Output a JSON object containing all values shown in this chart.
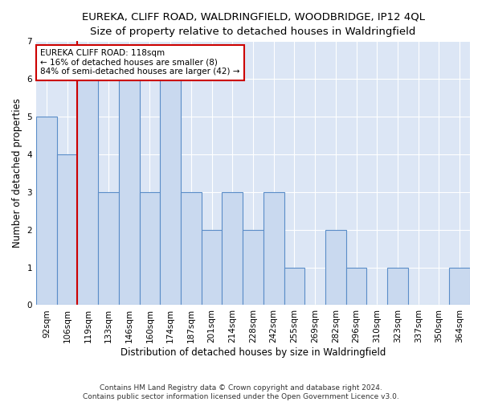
{
  "title": "EUREKA, CLIFF ROAD, WALDRINGFIELD, WOODBRIDGE, IP12 4QL",
  "subtitle": "Size of property relative to detached houses in Waldringfield",
  "xlabel": "Distribution of detached houses by size in Waldringfield",
  "ylabel": "Number of detached properties",
  "categories": [
    "92sqm",
    "106sqm",
    "119sqm",
    "133sqm",
    "146sqm",
    "160sqm",
    "174sqm",
    "187sqm",
    "201sqm",
    "214sqm",
    "228sqm",
    "242sqm",
    "255sqm",
    "269sqm",
    "282sqm",
    "296sqm",
    "310sqm",
    "323sqm",
    "337sqm",
    "350sqm",
    "364sqm"
  ],
  "values": [
    5,
    4,
    6,
    3,
    6,
    3,
    6,
    3,
    2,
    3,
    2,
    3,
    1,
    0,
    2,
    1,
    0,
    1,
    0,
    0,
    1
  ],
  "bar_color": "#c9d9ef",
  "bar_edge_color": "#5b8dc8",
  "plot_bg_color": "#dce6f5",
  "red_line_index": 2,
  "annotation_line1": "EUREKA CLIFF ROAD: 118sqm",
  "annotation_line2": "← 16% of detached houses are smaller (8)",
  "annotation_line3": "84% of semi-detached houses are larger (42) →",
  "annotation_box_color": "#ffffff",
  "annotation_box_edge": "#cc0000",
  "red_line_color": "#cc0000",
  "ylim": [
    0,
    7
  ],
  "yticks": [
    0,
    1,
    2,
    3,
    4,
    5,
    6,
    7
  ],
  "footnote1": "Contains HM Land Registry data © Crown copyright and database right 2024.",
  "footnote2": "Contains public sector information licensed under the Open Government Licence v3.0.",
  "title_fontsize": 9.5,
  "xlabel_fontsize": 8.5,
  "ylabel_fontsize": 8.5,
  "tick_fontsize": 7.5,
  "annot_fontsize": 7.5,
  "footnote_fontsize": 6.5
}
